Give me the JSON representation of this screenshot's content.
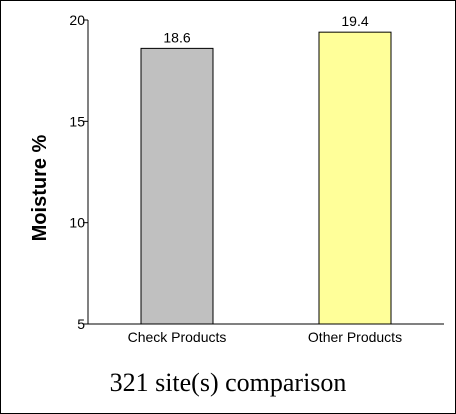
{
  "caption": "321 site(s) comparison",
  "chart_data": {
    "type": "bar",
    "categories": [
      "Check Products",
      "Other Products"
    ],
    "values": [
      18.6,
      19.4
    ],
    "value_labels": [
      "18.6",
      "19.4"
    ],
    "colors": [
      "#c0c0c0",
      "#ffff99"
    ],
    "ylabel": "Moisture %",
    "xlabel": "",
    "ylim": [
      5,
      20
    ],
    "yticks": [
      5,
      10,
      15,
      20
    ],
    "grid": false
  }
}
